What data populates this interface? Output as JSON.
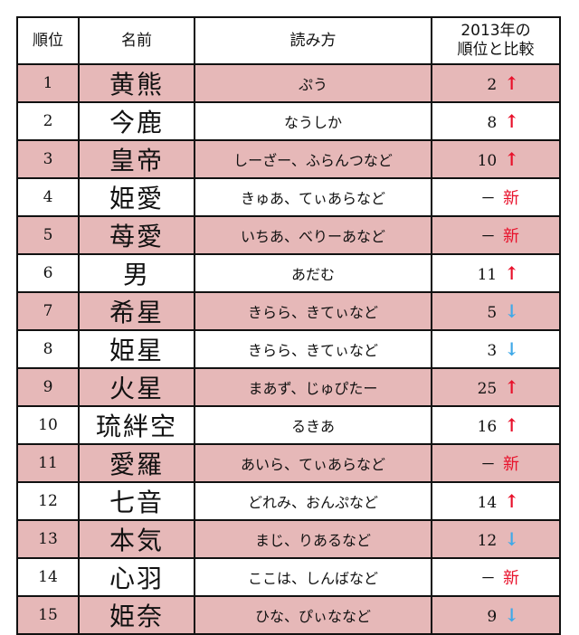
{
  "header": {
    "rank": "順位",
    "name": "名前",
    "reading": "読み方",
    "comparison_line1": "2013年の",
    "comparison_line2": "順位と比較"
  },
  "rows": [
    {
      "rank": "1",
      "name": "黄熊",
      "reading": "ぷう",
      "prev": "2",
      "mark": "↑",
      "trend": "up"
    },
    {
      "rank": "2",
      "name": "今鹿",
      "reading": "なうしか",
      "prev": "8",
      "mark": "↑",
      "trend": "up"
    },
    {
      "rank": "3",
      "name": "皇帝",
      "reading": "しーざー、ふらんつなど",
      "prev": "10",
      "mark": "↑",
      "trend": "up"
    },
    {
      "rank": "4",
      "name": "姫愛",
      "reading": "きゅあ、てぃあらなど",
      "prev": "－",
      "mark": "新",
      "trend": "new"
    },
    {
      "rank": "5",
      "name": "苺愛",
      "reading": "いちあ、べりーあなど",
      "prev": "－",
      "mark": "新",
      "trend": "new"
    },
    {
      "rank": "6",
      "name": "男",
      "reading": "あだむ",
      "prev": "11",
      "mark": "↑",
      "trend": "up"
    },
    {
      "rank": "7",
      "name": "希星",
      "reading": "きらら、きてぃなど",
      "prev": "5",
      "mark": "↓",
      "trend": "down"
    },
    {
      "rank": "8",
      "name": "姫星",
      "reading": "きらら、きてぃなど",
      "prev": "3",
      "mark": "↓",
      "trend": "down"
    },
    {
      "rank": "9",
      "name": "火星",
      "reading": "まあず、じゅぴたー",
      "prev": "25",
      "mark": "↑",
      "trend": "up"
    },
    {
      "rank": "10",
      "name": "琉絆空",
      "reading": "るきあ",
      "prev": "16",
      "mark": "↑",
      "trend": "up"
    },
    {
      "rank": "11",
      "name": "愛羅",
      "reading": "あいら、てぃあらなど",
      "prev": "－",
      "mark": "新",
      "trend": "new"
    },
    {
      "rank": "12",
      "name": "七音",
      "reading": "どれみ、おんぷなど",
      "prev": "14",
      "mark": "↑",
      "trend": "up"
    },
    {
      "rank": "13",
      "name": "本気",
      "reading": "まじ、りあるなど",
      "prev": "12",
      "mark": "↓",
      "trend": "down"
    },
    {
      "rank": "14",
      "name": "心羽",
      "reading": "ここは、しんばなど",
      "prev": "－",
      "mark": "新",
      "trend": "new"
    },
    {
      "rank": "15",
      "name": "姫奈",
      "reading": "ひな、ぴぃななど",
      "prev": "9",
      "mark": "↓",
      "trend": "down"
    }
  ],
  "colors": {
    "row_highlight": "#e6b8b8",
    "up_arrow": "#e8102a",
    "down_arrow": "#3fa9e8",
    "new_mark": "#e8102a"
  }
}
